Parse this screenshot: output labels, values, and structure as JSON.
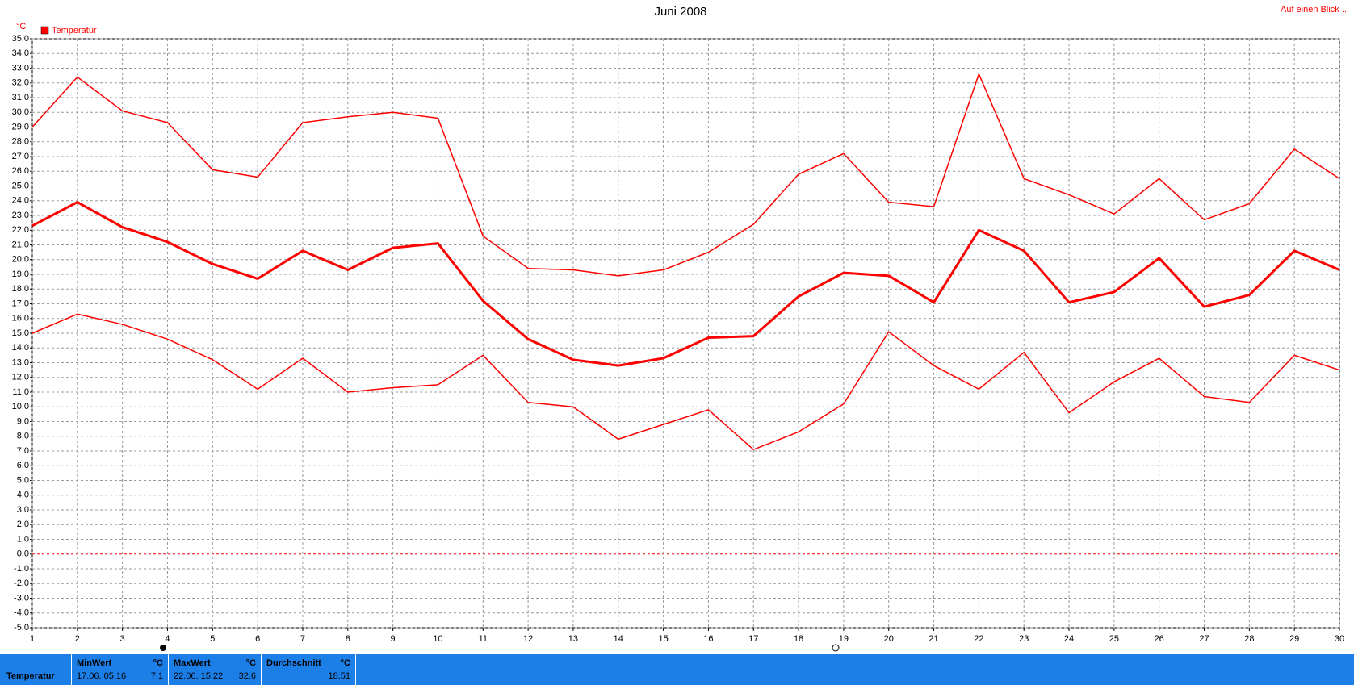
{
  "chart_data": {
    "type": "line",
    "title": "Juni 2008",
    "y_unit": "°C",
    "link": "Auf einen Blick ...",
    "legend": {
      "label": "Temperatur",
      "color": "#ff0000"
    },
    "x": [
      1,
      2,
      3,
      4,
      5,
      6,
      7,
      8,
      9,
      10,
      11,
      12,
      13,
      14,
      15,
      16,
      17,
      18,
      19,
      20,
      21,
      22,
      23,
      24,
      25,
      26,
      27,
      28,
      29,
      30
    ],
    "xlim": [
      1,
      30
    ],
    "xticks": [
      1,
      2,
      3,
      4,
      5,
      6,
      7,
      8,
      9,
      10,
      11,
      12,
      13,
      14,
      15,
      16,
      17,
      18,
      19,
      20,
      21,
      22,
      23,
      24,
      25,
      26,
      27,
      28,
      29,
      30
    ],
    "series": [
      {
        "color": "#ff0000",
        "width": 1.5,
        "values": [
          29.0,
          32.4,
          30.1,
          29.3,
          26.1,
          25.6,
          29.3,
          29.7,
          30.0,
          29.6,
          21.6,
          19.4,
          19.3,
          18.9,
          19.3,
          20.5,
          22.4,
          25.8,
          27.2,
          23.9,
          23.6,
          32.6,
          25.5,
          24.4,
          23.1,
          25.5,
          22.7,
          23.8,
          27.5,
          25.5
        ]
      },
      {
        "color": "#ff0000",
        "width": 3,
        "values": [
          22.3,
          23.9,
          22.2,
          21.2,
          19.7,
          18.7,
          20.6,
          19.3,
          20.8,
          21.1,
          17.2,
          14.6,
          13.2,
          12.8,
          13.3,
          14.7,
          14.8,
          17.5,
          19.1,
          18.9,
          17.1,
          22.0,
          20.6,
          17.1,
          17.8,
          20.1,
          16.8,
          17.6,
          20.6,
          19.3
        ]
      },
      {
        "color": "#ff0000",
        "width": 1.5,
        "values": [
          15.0,
          16.3,
          15.6,
          14.6,
          13.2,
          11.2,
          13.3,
          11.0,
          11.3,
          11.5,
          13.5,
          10.3,
          10.0,
          7.8,
          8.8,
          9.8,
          7.1,
          8.3,
          10.2,
          15.1,
          12.8,
          11.2,
          13.7,
          9.6,
          11.7,
          13.3,
          10.7,
          10.3,
          13.5,
          12.5
        ]
      }
    ],
    "ylim": [
      -5,
      35
    ],
    "yticks": [
      {
        "value": 35,
        "label": "35.0"
      },
      {
        "value": 34,
        "label": "34.0"
      },
      {
        "value": 33,
        "label": "33.0"
      },
      {
        "value": 32,
        "label": "32.0"
      },
      {
        "value": 31,
        "label": "31.0"
      },
      {
        "value": 30,
        "label": "30.0"
      },
      {
        "value": 29,
        "label": "29.0"
      },
      {
        "value": 28,
        "label": "28.0"
      },
      {
        "value": 27,
        "label": "27.0"
      },
      {
        "value": 26,
        "label": "26.0"
      },
      {
        "value": 25,
        "label": "25.0"
      },
      {
        "value": 24,
        "label": "24.0"
      },
      {
        "value": 23,
        "label": "23.0"
      },
      {
        "value": 22,
        "label": "22.0"
      },
      {
        "value": 21,
        "label": "21.0"
      },
      {
        "value": 20,
        "label": "20.0"
      },
      {
        "value": 19,
        "label": "19.0"
      },
      {
        "value": 18,
        "label": "18.0"
      },
      {
        "value": 17,
        "label": "17.0"
      },
      {
        "value": 16,
        "label": "16.0"
      },
      {
        "value": 15,
        "label": "15.0"
      },
      {
        "value": 14,
        "label": "14.0"
      },
      {
        "value": 13,
        "label": "13.0"
      },
      {
        "value": 12,
        "label": "12.0"
      },
      {
        "value": 11,
        "label": "11.0"
      },
      {
        "value": 10,
        "label": "10.0"
      },
      {
        "value": 9,
        "label": "9.0"
      },
      {
        "value": 8,
        "label": "8.0"
      },
      {
        "value": 7,
        "label": "7.0"
      },
      {
        "value": 6,
        "label": "6.0"
      },
      {
        "value": 5,
        "label": "5.0"
      },
      {
        "value": 4,
        "label": "4.0"
      },
      {
        "value": 3,
        "label": "3.0"
      },
      {
        "value": 2,
        "label": "2.0"
      },
      {
        "value": 1,
        "label": "1.0"
      },
      {
        "value": 0,
        "label": "0.0"
      },
      {
        "value": -1,
        "label": "-1.0"
      },
      {
        "value": -2,
        "label": "-2.0"
      },
      {
        "value": -3,
        "label": "-3.0"
      },
      {
        "value": -4,
        "label": "-4.0"
      },
      {
        "value": -5,
        "label": "-5.0"
      }
    ],
    "grid": true
  },
  "stats": {
    "name": "Temperatur",
    "cells": [
      {
        "label": "MinWert",
        "unit": "°C",
        "time": "17.06.  05:16",
        "value": 7.1
      },
      {
        "label": "MaxWert",
        "unit": "°C",
        "time": "22.06.  15:22",
        "value": 32.6
      },
      {
        "label": "Durchschnitt",
        "unit": "°C",
        "value": 18.51
      }
    ]
  }
}
